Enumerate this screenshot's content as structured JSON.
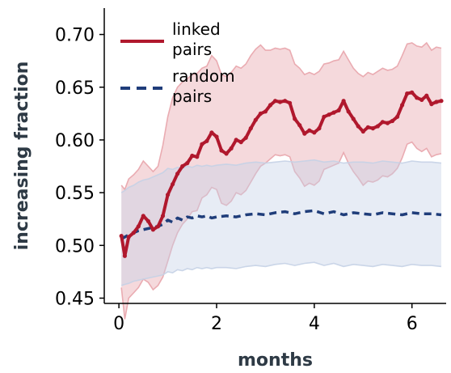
{
  "chart_data": {
    "type": "line",
    "xlabel": "months",
    "ylabel": "increasing fraction",
    "xlim": [
      -0.3,
      6.7
    ],
    "ylim": [
      0.445,
      0.725
    ],
    "x_ticks": [
      "0",
      "2",
      "4",
      "6"
    ],
    "x_tick_values": [
      0,
      2,
      4,
      6
    ],
    "y_ticks": [
      "0.45",
      "0.50",
      "0.55",
      "0.60",
      "0.65",
      "0.70"
    ],
    "y_tick_values": [
      0.45,
      0.5,
      0.55,
      0.6,
      0.65,
      0.7
    ],
    "grid": false,
    "legend_position": "top-left",
    "series": [
      {
        "name": "linked pairs",
        "color": "#b0182d",
        "band_color": "#e8a4ab",
        "style": "solid",
        "x": [
          0.05,
          0.12,
          0.2,
          0.3,
          0.4,
          0.5,
          0.6,
          0.7,
          0.8,
          0.9,
          1.0,
          1.1,
          1.2,
          1.3,
          1.4,
          1.5,
          1.6,
          1.7,
          1.8,
          1.9,
          2.0,
          2.1,
          2.2,
          2.3,
          2.4,
          2.5,
          2.6,
          2.7,
          2.8,
          2.9,
          3.0,
          3.1,
          3.2,
          3.3,
          3.4,
          3.5,
          3.6,
          3.7,
          3.8,
          3.9,
          4.0,
          4.1,
          4.2,
          4.3,
          4.4,
          4.5,
          4.6,
          4.7,
          4.8,
          4.9,
          5.0,
          5.1,
          5.2,
          5.3,
          5.4,
          5.5,
          5.6,
          5.7,
          5.8,
          5.9,
          6.0,
          6.1,
          6.2,
          6.3,
          6.4,
          6.5,
          6.6
        ],
        "y": [
          0.509,
          0.49,
          0.508,
          0.512,
          0.518,
          0.528,
          0.523,
          0.515,
          0.518,
          0.528,
          0.548,
          0.558,
          0.568,
          0.575,
          0.578,
          0.585,
          0.584,
          0.596,
          0.599,
          0.607,
          0.603,
          0.59,
          0.587,
          0.592,
          0.6,
          0.598,
          0.602,
          0.611,
          0.619,
          0.625,
          0.627,
          0.633,
          0.637,
          0.636,
          0.637,
          0.635,
          0.62,
          0.614,
          0.606,
          0.609,
          0.607,
          0.611,
          0.622,
          0.624,
          0.626,
          0.628,
          0.637,
          0.627,
          0.62,
          0.613,
          0.608,
          0.612,
          0.611,
          0.613,
          0.617,
          0.616,
          0.618,
          0.622,
          0.633,
          0.644,
          0.645,
          0.64,
          0.638,
          0.642,
          0.634,
          0.636,
          0.637
        ],
        "upper": [
          0.557,
          0.553,
          0.563,
          0.567,
          0.572,
          0.58,
          0.575,
          0.57,
          0.575,
          0.595,
          0.622,
          0.64,
          0.65,
          0.655,
          0.658,
          0.662,
          0.663,
          0.668,
          0.67,
          0.68,
          0.675,
          0.662,
          0.66,
          0.664,
          0.67,
          0.668,
          0.672,
          0.68,
          0.686,
          0.69,
          0.685,
          0.685,
          0.687,
          0.686,
          0.687,
          0.685,
          0.672,
          0.668,
          0.662,
          0.664,
          0.662,
          0.665,
          0.672,
          0.673,
          0.675,
          0.676,
          0.684,
          0.676,
          0.668,
          0.663,
          0.66,
          0.664,
          0.662,
          0.665,
          0.668,
          0.666,
          0.667,
          0.67,
          0.68,
          0.691,
          0.692,
          0.689,
          0.688,
          0.692,
          0.685,
          0.688,
          0.687
        ],
        "lower": [
          0.46,
          0.43,
          0.45,
          0.455,
          0.46,
          0.468,
          0.465,
          0.458,
          0.462,
          0.47,
          0.485,
          0.5,
          0.512,
          0.52,
          0.525,
          0.532,
          0.533,
          0.545,
          0.548,
          0.555,
          0.553,
          0.54,
          0.538,
          0.542,
          0.55,
          0.548,
          0.552,
          0.56,
          0.568,
          0.575,
          0.578,
          0.582,
          0.586,
          0.585,
          0.586,
          0.584,
          0.57,
          0.564,
          0.556,
          0.559,
          0.557,
          0.561,
          0.572,
          0.574,
          0.576,
          0.578,
          0.588,
          0.578,
          0.57,
          0.564,
          0.557,
          0.561,
          0.56,
          0.562,
          0.566,
          0.565,
          0.568,
          0.573,
          0.583,
          0.596,
          0.598,
          0.592,
          0.589,
          0.592,
          0.584,
          0.586,
          0.587
        ]
      },
      {
        "name": "random pairs",
        "color": "#1f3d7a",
        "band_color": "#c5d1e6",
        "style": "dashed",
        "x": [
          0.05,
          0.12,
          0.2,
          0.3,
          0.4,
          0.5,
          0.6,
          0.7,
          0.8,
          0.9,
          1.0,
          1.1,
          1.2,
          1.3,
          1.4,
          1.5,
          1.6,
          1.7,
          1.8,
          1.9,
          2.0,
          2.2,
          2.4,
          2.6,
          2.8,
          3.0,
          3.2,
          3.4,
          3.6,
          3.8,
          4.0,
          4.2,
          4.4,
          4.6,
          4.8,
          5.0,
          5.2,
          5.4,
          5.6,
          5.8,
          6.0,
          6.2,
          6.4,
          6.6
        ],
        "y": [
          0.506,
          0.508,
          0.51,
          0.512,
          0.514,
          0.515,
          0.516,
          0.517,
          0.518,
          0.52,
          0.524,
          0.522,
          0.526,
          0.524,
          0.527,
          0.526,
          0.528,
          0.527,
          0.528,
          0.526,
          0.527,
          0.528,
          0.527,
          0.529,
          0.53,
          0.529,
          0.531,
          0.532,
          0.53,
          0.532,
          0.533,
          0.53,
          0.532,
          0.529,
          0.531,
          0.53,
          0.529,
          0.531,
          0.53,
          0.529,
          0.531,
          0.53,
          0.53,
          0.529
        ],
        "upper": [
          0.55,
          0.552,
          0.555,
          0.557,
          0.56,
          0.562,
          0.563,
          0.565,
          0.567,
          0.569,
          0.573,
          0.572,
          0.574,
          0.573,
          0.575,
          0.574,
          0.576,
          0.575,
          0.576,
          0.575,
          0.576,
          0.577,
          0.576,
          0.578,
          0.579,
          0.578,
          0.579,
          0.58,
          0.579,
          0.58,
          0.581,
          0.579,
          0.58,
          0.578,
          0.579,
          0.579,
          0.578,
          0.58,
          0.579,
          0.578,
          0.58,
          0.579,
          0.579,
          0.578
        ],
        "lower": [
          0.462,
          0.463,
          0.464,
          0.466,
          0.467,
          0.468,
          0.469,
          0.47,
          0.471,
          0.472,
          0.475,
          0.474,
          0.477,
          0.476,
          0.478,
          0.477,
          0.479,
          0.478,
          0.479,
          0.478,
          0.479,
          0.479,
          0.478,
          0.48,
          0.481,
          0.48,
          0.482,
          0.483,
          0.481,
          0.483,
          0.484,
          0.481,
          0.483,
          0.48,
          0.482,
          0.481,
          0.48,
          0.482,
          0.481,
          0.48,
          0.482,
          0.481,
          0.481,
          0.48
        ]
      }
    ]
  },
  "legend": {
    "items": [
      {
        "line1": "linked",
        "line2": "pairs"
      },
      {
        "line1": "random",
        "line2": "pairs"
      }
    ]
  }
}
